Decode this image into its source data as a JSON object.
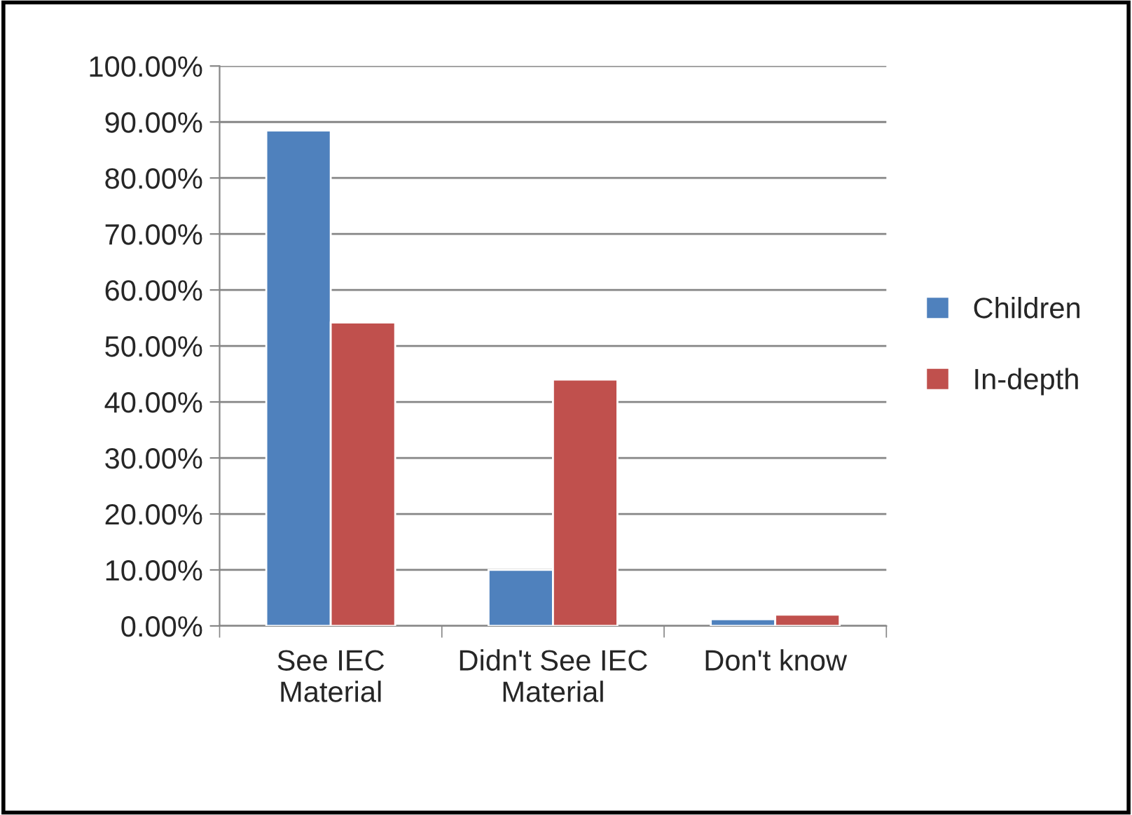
{
  "chart_data": {
    "type": "bar",
    "categories": [
      "See IEC\nMaterial",
      "Didn't See IEC\nMaterial",
      "Don't know"
    ],
    "series": [
      {
        "name": "Children",
        "color": "#4f81bd",
        "values": [
          88.5,
          10,
          1.2
        ]
      },
      {
        "name": "In-depth",
        "color": "#c0504d",
        "values": [
          54.2,
          44.0,
          2.0
        ]
      }
    ],
    "ylim": [
      0,
      100
    ],
    "yticks": [
      {
        "value": 0,
        "label": "0.00%"
      },
      {
        "value": 10,
        "label": "10.00%"
      },
      {
        "value": 20,
        "label": "20.00%"
      },
      {
        "value": 30,
        "label": "30.00%"
      },
      {
        "value": 40,
        "label": "40.00%"
      },
      {
        "value": 50,
        "label": "50.00%"
      },
      {
        "value": 60,
        "label": "60.00%"
      },
      {
        "value": 70,
        "label": "70.00%"
      },
      {
        "value": 80,
        "label": "80.00%"
      },
      {
        "value": 90,
        "label": "90.00%"
      },
      {
        "value": 100,
        "label": "100.00%"
      }
    ],
    "grid": "y",
    "legend": "right"
  }
}
